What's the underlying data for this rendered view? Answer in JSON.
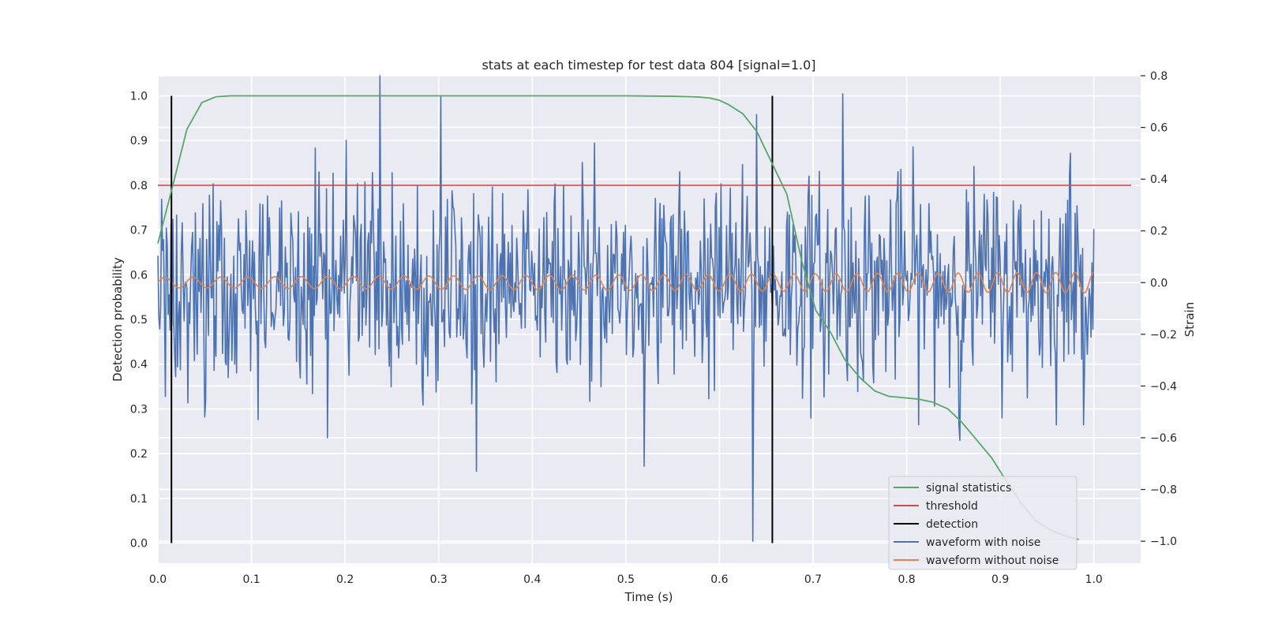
{
  "chart_data": {
    "type": "line",
    "title": "stats at each timestep for test data 804 [signal=1.0]",
    "xlabel": "Time (s)",
    "ylabel": "Detection probability",
    "y2label": "Strain",
    "xlim": [
      0.0,
      1.05
    ],
    "ylim": [
      -0.045,
      1.045
    ],
    "y2lim": [
      -1.085,
      0.8
    ],
    "xticks": [
      "0.0",
      "0.1",
      "0.2",
      "0.3",
      "0.4",
      "0.5",
      "0.6",
      "0.7",
      "0.8",
      "0.9",
      "1.0"
    ],
    "yticks": [
      "0.0",
      "0.1",
      "0.2",
      "0.3",
      "0.4",
      "0.5",
      "0.6",
      "0.7",
      "0.8",
      "0.9",
      "1.0"
    ],
    "y2ticks": [
      "−1.0",
      "−0.8",
      "−0.6",
      "−0.4",
      "−0.2",
      "0.0",
      "0.2",
      "0.4",
      "0.6",
      "0.8"
    ],
    "grid": true,
    "legend_position": "bottom-right",
    "colors": {
      "signal": "#55a868",
      "threshold": "#c44e52",
      "detection": "#000000",
      "noisy": "#4c72b0",
      "clean": "#dd8452",
      "plot_bg": "#eaeaf2",
      "grid": "#ffffff"
    },
    "legend": [
      {
        "label": "signal statistics",
        "color": "#55a868"
      },
      {
        "label": "threshold",
        "color": "#c44e52"
      },
      {
        "label": "detection",
        "color": "#000000"
      },
      {
        "label": "waveform with noise",
        "color": "#4c72b0"
      },
      {
        "label": "waveform without noise",
        "color": "#dd8452"
      }
    ],
    "series": [
      {
        "name": "signal statistics",
        "axis": "left",
        "x": [
          0.0,
          0.016,
          0.031,
          0.047,
          0.062,
          0.078,
          0.1,
          0.2,
          0.3,
          0.4,
          0.5,
          0.55,
          0.57,
          0.58,
          0.59,
          0.6,
          0.61,
          0.625,
          0.64,
          0.656,
          0.672,
          0.688,
          0.703,
          0.719,
          0.734,
          0.75,
          0.766,
          0.781,
          0.797,
          0.812,
          0.828,
          0.844,
          0.859,
          0.875,
          0.891,
          0.906,
          0.922,
          0.938,
          0.953,
          0.969,
          0.984
        ],
        "y": [
          0.67,
          0.8,
          0.925,
          0.985,
          0.998,
          1.0,
          1.0,
          1.0,
          1.0,
          1.0,
          1.0,
          0.999,
          0.998,
          0.997,
          0.995,
          0.99,
          0.98,
          0.96,
          0.92,
          0.85,
          0.78,
          0.63,
          0.52,
          0.47,
          0.41,
          0.37,
          0.34,
          0.328,
          0.325,
          0.322,
          0.315,
          0.3,
          0.27,
          0.23,
          0.19,
          0.14,
          0.09,
          0.05,
          0.03,
          0.016,
          0.008
        ]
      },
      {
        "name": "threshold",
        "axis": "left",
        "x": [
          0.0,
          1.04
        ],
        "y": [
          0.8,
          0.8
        ]
      },
      {
        "name": "detection",
        "axis": "left",
        "x": [
          0.0145,
          0.6565
        ],
        "y": [
          0.0,
          1.0
        ]
      },
      {
        "name": "waveform with noise",
        "axis": "right",
        "sample_count": 1000,
        "noise_std": 0.2,
        "extremes": [
          {
            "x": 0.237,
            "y": 0.8
          },
          {
            "x": 0.302,
            "y": 0.72
          },
          {
            "x": 0.34,
            "y": -0.73
          },
          {
            "x": 0.52,
            "y": -0.71
          },
          {
            "x": 0.636,
            "y": -1.0
          },
          {
            "x": 0.64,
            "y": 0.65
          },
          {
            "x": 0.732,
            "y": 0.73
          },
          {
            "x": 0.181,
            "y": -0.6
          },
          {
            "x": 0.107,
            "y": -0.53
          },
          {
            "x": 0.05,
            "y": -0.52
          },
          {
            "x": 0.975,
            "y": 0.5
          },
          {
            "x": 0.857,
            "y": -0.61
          }
        ]
      },
      {
        "name": "waveform without noise",
        "axis": "right",
        "sample_count": 1000,
        "cycles": 33,
        "amplitude_start": 0.02,
        "amplitude_end": 0.04
      }
    ]
  }
}
